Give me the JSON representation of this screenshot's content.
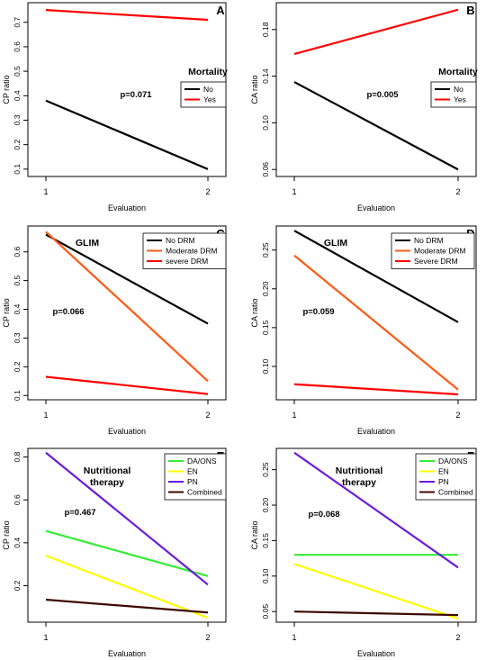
{
  "chart_data": [
    {
      "type": "line",
      "panel_label": "A",
      "xlabel": "Evaluation",
      "ylabel": "CP ratio",
      "x": [
        1,
        2
      ],
      "x_ticks": [
        "1",
        "2"
      ],
      "ylim": [
        0.07,
        0.78
      ],
      "y_ticks": [
        0.1,
        0.2,
        0.3,
        0.4,
        0.5,
        0.6,
        0.7
      ],
      "y_tick_labels": [
        "0.1",
        "0.2",
        "0.3",
        "0.4",
        "0.5",
        "0.6",
        "0.7"
      ],
      "legend_title": "Mortality",
      "p_value": "p=0.071",
      "series": [
        {
          "name": "No",
          "color": "#000000",
          "values": [
            0.38,
            0.1
          ]
        },
        {
          "name": "Yes",
          "color": "#ff0000",
          "values": [
            0.75,
            0.71
          ]
        }
      ]
    },
    {
      "type": "line",
      "panel_label": "B",
      "xlabel": "Evaluation",
      "ylabel": "CA ratio",
      "x": [
        1,
        2
      ],
      "x_ticks": [
        "1",
        "2"
      ],
      "ylim": [
        0.054,
        0.203
      ],
      "y_ticks": [
        0.06,
        0.1,
        0.14,
        0.18
      ],
      "y_tick_labels": [
        "0.06",
        "0.10",
        "0.14",
        "0.18"
      ],
      "legend_title": "Mortality",
      "p_value": "p=0.005",
      "series": [
        {
          "name": "No",
          "color": "#000000",
          "values": [
            0.135,
            0.06
          ]
        },
        {
          "name": "Yes",
          "color": "#ff0000",
          "values": [
            0.159,
            0.197
          ]
        }
      ]
    },
    {
      "type": "line",
      "panel_label": "C",
      "xlabel": "Evaluation",
      "ylabel": "CP ratio",
      "x": [
        1,
        2
      ],
      "x_ticks": [
        "1",
        "2"
      ],
      "ylim": [
        0.085,
        0.69
      ],
      "y_ticks": [
        0.1,
        0.2,
        0.3,
        0.4,
        0.5,
        0.6
      ],
      "y_tick_labels": [
        "0.1",
        "0.2",
        "0.3",
        "0.4",
        "0.5",
        "0.6"
      ],
      "legend_title": "GLIM",
      "p_value": "p=0.066",
      "series": [
        {
          "name": "No DRM",
          "color": "#000000",
          "values": [
            0.66,
            0.35
          ]
        },
        {
          "name": "Moderate DRM",
          "color": "#ff5a14",
          "values": [
            0.67,
            0.15
          ]
        },
        {
          "name": "severe DRM",
          "color": "#ff0000",
          "values": [
            0.165,
            0.105
          ]
        }
      ]
    },
    {
      "type": "line",
      "panel_label": "D",
      "xlabel": "Evaluation",
      "ylabel": "CA ratio",
      "x": [
        1,
        2
      ],
      "x_ticks": [
        "1",
        "2"
      ],
      "ylim": [
        0.057,
        0.281
      ],
      "y_ticks": [
        0.1,
        0.15,
        0.2,
        0.25
      ],
      "y_tick_labels": [
        "0.10",
        "0.15",
        "0.20",
        "0.25"
      ],
      "legend_title": "GLIM",
      "p_value": "p=0.059",
      "series": [
        {
          "name": "No DRM",
          "color": "#000000",
          "values": [
            0.275,
            0.157
          ]
        },
        {
          "name": "Moderate DRM",
          "color": "#ff5a14",
          "values": [
            0.243,
            0.07
          ]
        },
        {
          "name": "Severe DRM",
          "color": "#ff0000",
          "values": [
            0.077,
            0.064
          ]
        }
      ]
    },
    {
      "type": "line",
      "panel_label": "E",
      "xlabel": "Evaluation",
      "ylabel": "CP ratio",
      "x": [
        1,
        2
      ],
      "x_ticks": [
        "1",
        "2"
      ],
      "ylim": [
        0.03,
        0.84
      ],
      "y_ticks": [
        0.2,
        0.4,
        0.6,
        0.8
      ],
      "y_tick_labels": [
        "0.2",
        "0.4",
        "0.6",
        "0.8"
      ],
      "legend_title": [
        "Nutritional",
        "therapy"
      ],
      "p_value": "p=0.467",
      "series": [
        {
          "name": "DA/ONS",
          "color": "#33ee33",
          "values": [
            0.455,
            0.245
          ]
        },
        {
          "name": "EN",
          "color": "#ffff00",
          "values": [
            0.34,
            0.05
          ]
        },
        {
          "name": "PN",
          "color": "#6a1adf",
          "values": [
            0.82,
            0.205
          ]
        },
        {
          "name": "Combined",
          "color": "#3c0a00",
          "values": [
            0.135,
            0.075
          ]
        }
      ]
    },
    {
      "type": "line",
      "panel_label": "F",
      "xlabel": "Evaluation",
      "ylabel": "CA ratio",
      "x": [
        1,
        2
      ],
      "x_ticks": [
        "1",
        "2"
      ],
      "ylim": [
        0.035,
        0.28
      ],
      "y_ticks": [
        0.05,
        0.1,
        0.15,
        0.2,
        0.25
      ],
      "y_tick_labels": [
        "0.05",
        "0.10",
        "0.15",
        "0.20",
        "0.25"
      ],
      "legend_title": [
        "Nutritional",
        "therapy"
      ],
      "p_value": "p=0.068",
      "series": [
        {
          "name": "DA/ONS",
          "color": "#33ee33",
          "values": [
            0.13,
            0.13
          ]
        },
        {
          "name": "EN",
          "color": "#ffff00",
          "values": [
            0.117,
            0.04
          ]
        },
        {
          "name": "PN",
          "color": "#6a1adf",
          "values": [
            0.274,
            0.112
          ]
        },
        {
          "name": "Combined",
          "color": "#3c0a00",
          "values": [
            0.05,
            0.045
          ]
        }
      ]
    }
  ]
}
